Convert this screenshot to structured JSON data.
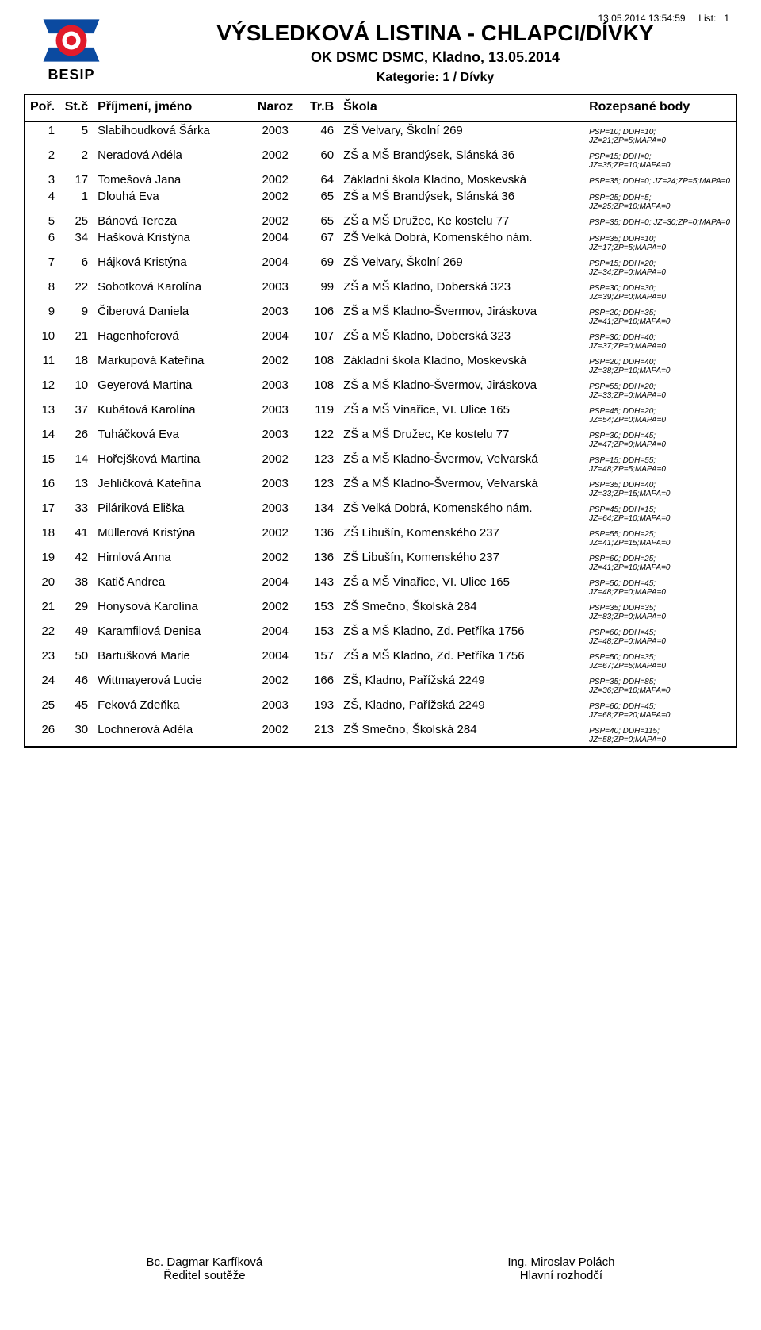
{
  "meta": {
    "timestamp": "13.05.2014 13:54:59",
    "list_label": "List:",
    "list_no": "1"
  },
  "header": {
    "logo_text": "BESIP",
    "title": "VÝSLEDKOVÁ LISTINA - CHLAPCI/DÍVKY",
    "subtitle": "OK DSMC DSMC, Kladno, 13.05.2014",
    "category": "Kategorie: 1 / Dívky"
  },
  "columns": {
    "por": "Poř.",
    "stc": "St.č",
    "name": "Příjmení, jméno",
    "naroz": "Naroz",
    "trb": "Tr.B",
    "skola": "Škola",
    "body": "Rozepsané body"
  },
  "logo_colors": {
    "blue": "#0b4aa0",
    "red": "#e11b2a",
    "white": "#ffffff"
  },
  "rows": [
    {
      "por": "1",
      "stc": "5",
      "name": "Slabihoudková Šárka",
      "naroz": "2003",
      "trb": "46",
      "skola": "ZŠ Velvary, Školní 269",
      "body": "PSP=10; DDH=10; JZ=21;ZP=5;MAPA=0"
    },
    {
      "por": "2",
      "stc": "2",
      "name": "Neradová Adéla",
      "naroz": "2002",
      "trb": "60",
      "skola": "ZŠ a MŠ Brandýsek, Slánská 36",
      "body": "PSP=15; DDH=0; JZ=35;ZP=10;MAPA=0"
    },
    {
      "por": "3",
      "stc": "17",
      "name": "Tomešová Jana",
      "naroz": "2002",
      "trb": "64",
      "skola": "Základní škola Kladno, Moskevská",
      "body": "PSP=35; DDH=0; JZ=24;ZP=5;MAPA=0"
    },
    {
      "por": "4",
      "stc": "1",
      "name": "Dlouhá Eva",
      "naroz": "2002",
      "trb": "65",
      "skola": "ZŠ a MŠ Brandýsek, Slánská 36",
      "body": "PSP=25; DDH=5; JZ=25;ZP=10;MAPA=0"
    },
    {
      "por": "5",
      "stc": "25",
      "name": "Bánová Tereza",
      "naroz": "2002",
      "trb": "65",
      "skola": "ZŠ a MŠ Družec, Ke kostelu 77",
      "body": "PSP=35; DDH=0; JZ=30;ZP=0;MAPA=0"
    },
    {
      "por": "6",
      "stc": "34",
      "name": "Hašková Kristýna",
      "naroz": "2004",
      "trb": "67",
      "skola": "ZŠ Velká Dobrá, Komenského nám.",
      "body": "PSP=35; DDH=10; JZ=17;ZP=5;MAPA=0"
    },
    {
      "por": "7",
      "stc": "6",
      "name": "Hájková Kristýna",
      "naroz": "2004",
      "trb": "69",
      "skola": "ZŠ Velvary, Školní 269",
      "body": "PSP=15; DDH=20; JZ=34;ZP=0;MAPA=0"
    },
    {
      "por": "8",
      "stc": "22",
      "name": "Sobotková Karolína",
      "naroz": "2003",
      "trb": "99",
      "skola": "ZŠ a MŠ Kladno, Doberská 323",
      "body": "PSP=30; DDH=30; JZ=39;ZP=0;MAPA=0"
    },
    {
      "por": "9",
      "stc": "9",
      "name": "Čiberová Daniela",
      "naroz": "2003",
      "trb": "106",
      "skola": "ZŠ a MŠ Kladno-Švermov, Jiráskova",
      "body": "PSP=20; DDH=35; JZ=41;ZP=10;MAPA=0"
    },
    {
      "por": "10",
      "stc": "21",
      "name": "Hagenhoferová",
      "naroz": "2004",
      "trb": "107",
      "skola": "ZŠ a MŠ Kladno, Doberská 323",
      "body": "PSP=30; DDH=40; JZ=37;ZP=0;MAPA=0"
    },
    {
      "por": "11",
      "stc": "18",
      "name": "Markupová Kateřina",
      "naroz": "2002",
      "trb": "108",
      "skola": "Základní škola Kladno, Moskevská",
      "body": "PSP=20; DDH=40; JZ=38;ZP=10;MAPA=0"
    },
    {
      "por": "12",
      "stc": "10",
      "name": "Geyerová Martina",
      "naroz": "2003",
      "trb": "108",
      "skola": "ZŠ a MŠ Kladno-Švermov, Jiráskova",
      "body": "PSP=55; DDH=20; JZ=33;ZP=0;MAPA=0"
    },
    {
      "por": "13",
      "stc": "37",
      "name": "Kubátová Karolína",
      "naroz": "2003",
      "trb": "119",
      "skola": "ZŠ a MŠ Vinařice, VI. Ulice 165",
      "body": "PSP=45; DDH=20; JZ=54;ZP=0;MAPA=0"
    },
    {
      "por": "14",
      "stc": "26",
      "name": "Tuháčková Eva",
      "naroz": "2003",
      "trb": "122",
      "skola": "ZŠ a MŠ Družec, Ke kostelu 77",
      "body": "PSP=30; DDH=45; JZ=47;ZP=0;MAPA=0"
    },
    {
      "por": "15",
      "stc": "14",
      "name": "Hořejšková Martina",
      "naroz": "2002",
      "trb": "123",
      "skola": "ZŠ a MŠ Kladno-Švermov, Velvarská",
      "body": "PSP=15; DDH=55; JZ=48;ZP=5;MAPA=0"
    },
    {
      "por": "16",
      "stc": "13",
      "name": "Jehličková Kateřina",
      "naroz": "2003",
      "trb": "123",
      "skola": "ZŠ a MŠ Kladno-Švermov, Velvarská",
      "body": "PSP=35; DDH=40; JZ=33;ZP=15;MAPA=0"
    },
    {
      "por": "17",
      "stc": "33",
      "name": "Piláriková Eliška",
      "naroz": "2003",
      "trb": "134",
      "skola": "ZŠ Velká Dobrá, Komenského nám.",
      "body": "PSP=45; DDH=15; JZ=64;ZP=10;MAPA=0"
    },
    {
      "por": "18",
      "stc": "41",
      "name": "Müllerová Kristýna",
      "naroz": "2002",
      "trb": "136",
      "skola": "ZŠ Libušín, Komenského 237",
      "body": "PSP=55; DDH=25; JZ=41;ZP=15;MAPA=0"
    },
    {
      "por": "19",
      "stc": "42",
      "name": "Himlová Anna",
      "naroz": "2002",
      "trb": "136",
      "skola": "ZŠ Libušín, Komenského 237",
      "body": "PSP=60; DDH=25; JZ=41;ZP=10;MAPA=0"
    },
    {
      "por": "20",
      "stc": "38",
      "name": "Katič Andrea",
      "naroz": "2004",
      "trb": "143",
      "skola": "ZŠ a MŠ Vinařice, VI. Ulice 165",
      "body": "PSP=50; DDH=45; JZ=48;ZP=0;MAPA=0"
    },
    {
      "por": "21",
      "stc": "29",
      "name": "Honysová Karolína",
      "naroz": "2002",
      "trb": "153",
      "skola": "ZŠ Smečno, Školská 284",
      "body": "PSP=35; DDH=35; JZ=83;ZP=0;MAPA=0"
    },
    {
      "por": "22",
      "stc": "49",
      "name": "Karamfilová Denisa",
      "naroz": "2004",
      "trb": "153",
      "skola": "ZŠ a MŠ Kladno, Zd. Petříka 1756",
      "body": "PSP=60; DDH=45; JZ=48;ZP=0;MAPA=0"
    },
    {
      "por": "23",
      "stc": "50",
      "name": "Bartušková Marie",
      "naroz": "2004",
      "trb": "157",
      "skola": "ZŠ a MŠ Kladno, Zd. Petříka 1756",
      "body": "PSP=50; DDH=35; JZ=67;ZP=5;MAPA=0"
    },
    {
      "por": "24",
      "stc": "46",
      "name": "Wittmayerová Lucie",
      "naroz": "2002",
      "trb": "166",
      "skola": "ZŠ, Kladno, Pařížská 2249",
      "body": "PSP=35; DDH=85; JZ=36;ZP=10;MAPA=0"
    },
    {
      "por": "25",
      "stc": "45",
      "name": "Feková Zdeňka",
      "naroz": "2003",
      "trb": "193",
      "skola": "ZŠ, Kladno, Pařížská 2249",
      "body": "PSP=60; DDH=45; JZ=68;ZP=20;MAPA=0"
    },
    {
      "por": "26",
      "stc": "30",
      "name": "Lochnerová Adéla",
      "naroz": "2002",
      "trb": "213",
      "skola": "ZŠ Smečno, Školská 284",
      "body": "PSP=40; DDH=115; JZ=58;ZP=0;MAPA=0"
    }
  ],
  "footer": {
    "left_name": "Bc. Dagmar Karfíková",
    "left_role": "Ředitel soutěže",
    "right_name": "Ing. Miroslav Polách",
    "right_role": "Hlavní rozhodčí"
  }
}
